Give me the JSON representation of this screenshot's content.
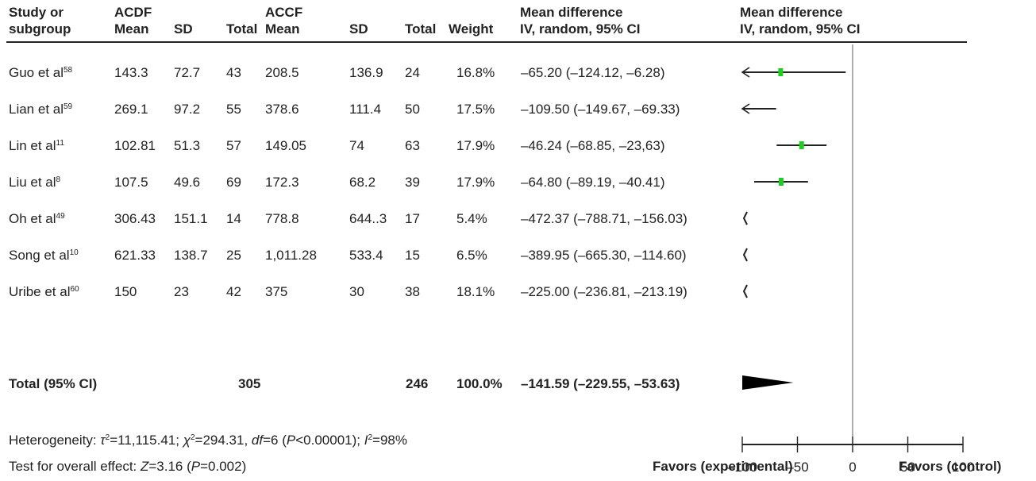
{
  "headers": {
    "study_line1": "Study or",
    "study_line2": "subgroup",
    "acdf_group": "ACDF",
    "accf_group": "ACCF",
    "mean": "Mean",
    "sd": "SD",
    "total": "Total",
    "weight": "Weight",
    "md_line1": "Mean difference",
    "md_line2": "IV, random, 95% CI",
    "plot_line1": "Mean difference",
    "plot_line2": "IV, random, 95% CI"
  },
  "rows": [
    {
      "study": "Guo et al",
      "ref": "58",
      "acdf_mean": "143.3",
      "acdf_sd": "72.7",
      "acdf_total": "43",
      "accf_mean": "208.5",
      "accf_sd": "136.9",
      "accf_total": "24",
      "weight": "16.8%",
      "md": "–65.20 (–124.12, –6.28)"
    },
    {
      "study": "Lian et al",
      "ref": "59",
      "acdf_mean": "269.1",
      "acdf_sd": "97.2",
      "acdf_total": "55",
      "accf_mean": "378.6",
      "accf_sd": "111.4",
      "accf_total": "50",
      "weight": "17.5%",
      "md": "–109.50 (–149.67, –69.33)"
    },
    {
      "study": "Lin et al",
      "ref": "11",
      "acdf_mean": "102.81",
      "acdf_sd": "51.3",
      "acdf_total": "57",
      "accf_mean": "149.05",
      "accf_sd": "74",
      "accf_total": "63",
      "weight": "17.9%",
      "md": "–46.24 (–68.85, –23,63)"
    },
    {
      "study": "Liu et al",
      "ref": "8",
      "acdf_mean": "107.5",
      "acdf_sd": "49.6",
      "acdf_total": "69",
      "accf_mean": "172.3",
      "accf_sd": "68.2",
      "accf_total": "39",
      "weight": "17.9%",
      "md": "–64.80 (–89.19, –40.41)"
    },
    {
      "study": "Oh et al",
      "ref": "49",
      "acdf_mean": "306.43",
      "acdf_sd": "151.1",
      "acdf_total": "14",
      "accf_mean": "778.8",
      "accf_sd": "644..3",
      "accf_total": "17",
      "weight": "5.4%",
      "md": "–472.37 (–788.71, –156.03)"
    },
    {
      "study": "Song et al",
      "ref": "10",
      "acdf_mean": "621.33",
      "acdf_sd": "138.7",
      "acdf_total": "25",
      "accf_mean": "1,011.28",
      "accf_sd": "533.4",
      "accf_total": "15",
      "weight": "6.5%",
      "md": "–389.95 (–665.30, –114.60)"
    },
    {
      "study": "Uribe et al",
      "ref": "60",
      "acdf_mean": "150",
      "acdf_sd": "23",
      "acdf_total": "42",
      "accf_mean": "375",
      "accf_sd": "30",
      "accf_total": "38",
      "weight": "18.1%",
      "md": "–225.00 (–236.81, –213.19)"
    }
  ],
  "total_row": {
    "label": "Total (95% CI)",
    "acdf_total": "305",
    "accf_total": "246",
    "weight": "100.0%",
    "md": "–141.59 (–229.55, –53.63)"
  },
  "footer": {
    "het_prefix": "Heterogeneity: ",
    "tau_sym": "τ",
    "tau_val": "=11,115.41; ",
    "chi_sym": "χ",
    "chi_val": "=294.31, ",
    "df_sym": "df",
    "df_val": "=6 (",
    "p_sym": "P",
    "p_val": "<0.00001); ",
    "i_sym": "I",
    "i_val": "=98%",
    "test_prefix": "Test for overall effect: ",
    "z_sym": "Z",
    "z_val": "=3.16 (",
    "p2_sym": "P",
    "p2_val": "=0.002)"
  },
  "axis": {
    "ticks": [
      -100,
      -50,
      0,
      50,
      100
    ],
    "tick_labels": [
      "–100",
      "–50",
      "0",
      "50",
      "100"
    ],
    "favors_left": "Favors (experimental)",
    "favors_right": "Favors (control)"
  },
  "colors": {
    "square": "#22cc22",
    "line": "#222222",
    "zero_line": "#777777"
  },
  "chart_data": {
    "type": "forest",
    "xlim": [
      -100,
      100
    ],
    "studies": [
      {
        "name": "Guo et al",
        "md": -65.2,
        "ci": [
          -124.12,
          -6.28
        ]
      },
      {
        "name": "Lian et al",
        "md": -109.5,
        "ci": [
          -149.67,
          -69.33
        ]
      },
      {
        "name": "Lin et al",
        "md": -46.24,
        "ci": [
          -68.85,
          -23.63
        ]
      },
      {
        "name": "Liu et al",
        "md": -64.8,
        "ci": [
          -89.19,
          -40.41
        ]
      },
      {
        "name": "Oh et al",
        "md": -472.37,
        "ci": [
          -788.71,
          -156.03
        ]
      },
      {
        "name": "Song et al",
        "md": -389.95,
        "ci": [
          -665.3,
          -114.6
        ]
      },
      {
        "name": "Uribe et al",
        "md": -225.0,
        "ci": [
          -236.81,
          -213.19
        ]
      }
    ],
    "pooled": {
      "md": -141.59,
      "ci": [
        -229.55,
        -53.63
      ]
    }
  }
}
